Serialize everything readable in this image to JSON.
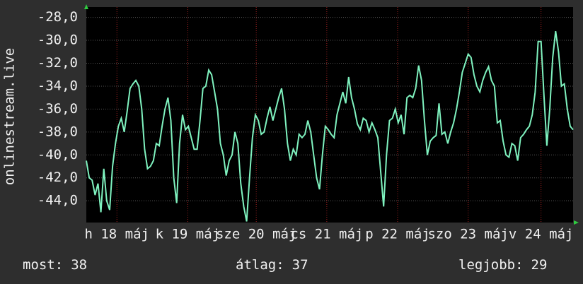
{
  "chart_data": {
    "type": "line",
    "y_label": "onlinestream.live",
    "color": "#7ff2bf",
    "values": [
      -40.5,
      -42,
      -42.2,
      -43.5,
      -42.5,
      -45,
      -41.2,
      -44,
      -44.8,
      -41,
      -39,
      -37.5,
      -36.8,
      -38,
      -36.2,
      -34.2,
      -33.8,
      -33.5,
      -34,
      -36,
      -39.5,
      -41.2,
      -41,
      -40.5,
      -39,
      -39.2,
      -37.5,
      -36,
      -35,
      -37,
      -42,
      -44.2,
      -39,
      -36.5,
      -37.8,
      -37.5,
      -38.5,
      -39.5,
      -39.5,
      -37,
      -34.2,
      -34,
      -32.6,
      -33,
      -34.5,
      -36,
      -39,
      -40,
      -41.8,
      -40.5,
      -40,
      -38,
      -39,
      -42.5,
      -44.5,
      -45.8,
      -42,
      -38.5,
      -36.5,
      -37,
      -38.2,
      -38,
      -36.8,
      -35.8,
      -37,
      -36,
      -35,
      -34.2,
      -36,
      -39,
      -40.5,
      -39.5,
      -40,
      -38.2,
      -38.5,
      -38.2,
      -37,
      -38,
      -40,
      -42,
      -43,
      -40,
      -37.5,
      -37.8,
      -38.2,
      -38.5,
      -36.5,
      -35.5,
      -34.5,
      -35.5,
      -33.2,
      -35,
      -36,
      -37.3,
      -37.8,
      -36.8,
      -37,
      -38,
      -37.2,
      -37.8,
      -38.5,
      -41.5,
      -44.5,
      -40,
      -37,
      -36.8,
      -36,
      -37.2,
      -36.5,
      -38.2,
      -35,
      -34.8,
      -35,
      -34.2,
      -32.2,
      -33.5,
      -37,
      -40,
      -38.8,
      -38.5,
      -38.3,
      -35.5,
      -38.2,
      -38,
      -39,
      -38,
      -37.2,
      -36,
      -34.5,
      -32.8,
      -32,
      -31.2,
      -31.5,
      -33,
      -34,
      -34.5,
      -33.5,
      -32.8,
      -32.3,
      -33.5,
      -34,
      -37.2,
      -37,
      -38.8,
      -40,
      -40.2,
      -39,
      -39.2,
      -40.5,
      -38.5,
      -38.2,
      -37.8,
      -37.5,
      -36.5,
      -34.5,
      -30.1,
      -30.1,
      -34.8,
      -39.2,
      -36,
      -31.5,
      -29.2,
      -31,
      -34,
      -33.8,
      -36,
      -37.5,
      -37.8
    ],
    "xlim": [
      0,
      167
    ],
    "xticks": [
      {
        "value": 10.5,
        "label": "h 18 máj"
      },
      {
        "value": 34.8,
        "label": "k 19 máj"
      },
      {
        "value": 58.3,
        "label": "sze 20 máj"
      },
      {
        "value": 82.5,
        "label": "cs 21 máj"
      },
      {
        "value": 106.8,
        "label": "p 22 máj"
      },
      {
        "value": 131,
        "label": "szo 23 máj"
      },
      {
        "value": 156,
        "label": "v 24 máj"
      }
    ],
    "ylim": [
      -45.9,
      -27.1
    ],
    "yticks": [
      {
        "value": -28,
        "label": "-28,0"
      },
      {
        "value": -30,
        "label": "-30,0"
      },
      {
        "value": -32,
        "label": "-32,0"
      },
      {
        "value": -34,
        "label": "-34,0"
      },
      {
        "value": -36,
        "label": "-36,0"
      },
      {
        "value": -38,
        "label": "-38,0"
      },
      {
        "value": -40,
        "label": "-40,0"
      },
      {
        "value": -42,
        "label": "-42,0"
      },
      {
        "value": -44,
        "label": "-44,0"
      }
    ],
    "grid": true,
    "stats": [
      {
        "label": "most:",
        "value": 38
      },
      {
        "label": "átlag:",
        "value": 37
      },
      {
        "label": "legjobb:",
        "value": 29
      }
    ]
  }
}
